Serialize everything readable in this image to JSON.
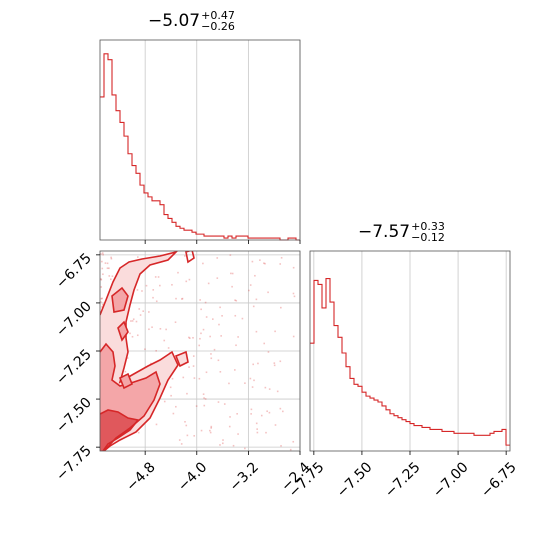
{
  "chart_data": [
    {
      "type": "histogram",
      "panel": "marginal-param-1",
      "title": {
        "median": "−5.07",
        "plus": "+0.47",
        "minus": "−0.26"
      },
      "xlim": [
        -5.5,
        -2.4
      ],
      "ticks": [
        -4.8,
        -4.0,
        -3.2,
        -2.4
      ],
      "tick_labels": [
        "−4.8",
        "−4.0",
        "−3.2",
        "−2.4"
      ],
      "grid": true,
      "color": "#d62728",
      "bin_start": -5.5,
      "bin_width": 0.062,
      "counts": [
        0.73,
        0.95,
        0.92,
        0.74,
        0.66,
        0.6,
        0.53,
        0.44,
        0.38,
        0.34,
        0.28,
        0.24,
        0.22,
        0.2,
        0.2,
        0.18,
        0.13,
        0.11,
        0.09,
        0.07,
        0.06,
        0.05,
        0.05,
        0.04,
        0.03,
        0.03,
        0.02,
        0.02,
        0.02,
        0.02,
        0.02,
        0.01,
        0.02,
        0.01,
        0.02,
        0.02,
        0.02,
        0.01,
        0.01,
        0.01,
        0.01,
        0.01,
        0.01,
        0.01,
        0.01,
        0.0,
        0.0,
        0.01,
        0.01,
        0.0
      ]
    },
    {
      "type": "contour",
      "panel": "joint-param-1-param-2",
      "xlim": [
        -5.5,
        -2.4
      ],
      "ylim": [
        -7.77,
        -6.73
      ],
      "xticks": [
        -4.8,
        -4.0,
        -3.2,
        -2.4
      ],
      "xtick_labels": [
        "−4.8",
        "−4.0",
        "−3.2",
        "−2.4"
      ],
      "yticks": [
        -6.75,
        -7.0,
        -7.25,
        -7.5,
        -7.75
      ],
      "ytick_labels": [
        "−6.75",
        "−7.00",
        "−7.25",
        "−7.50",
        "−7.75"
      ],
      "grid": true,
      "color": "#d62728"
    },
    {
      "type": "histogram",
      "panel": "marginal-param-2",
      "title": {
        "median": "−7.57",
        "plus": "+0.33",
        "minus": "−0.12"
      },
      "xlim": [
        -7.77,
        -6.73
      ],
      "ticks": [
        -7.75,
        -7.5,
        -7.25,
        -7.0,
        -6.75
      ],
      "tick_labels": [
        "−7.75",
        "−7.50",
        "−7.25",
        "−7.00",
        "−6.75"
      ],
      "grid": true,
      "color": "#d62728",
      "bin_start": -7.77,
      "bin_width": 0.0208,
      "counts": [
        0.55,
        0.87,
        0.85,
        0.73,
        0.88,
        0.76,
        0.64,
        0.58,
        0.5,
        0.43,
        0.37,
        0.34,
        0.33,
        0.3,
        0.28,
        0.27,
        0.26,
        0.25,
        0.23,
        0.21,
        0.19,
        0.18,
        0.17,
        0.16,
        0.15,
        0.14,
        0.13,
        0.13,
        0.12,
        0.12,
        0.11,
        0.11,
        0.11,
        0.1,
        0.1,
        0.1,
        0.09,
        0.09,
        0.09,
        0.09,
        0.09,
        0.08,
        0.08,
        0.08,
        0.08,
        0.09,
        0.1,
        0.1,
        0.11,
        0.03
      ]
    }
  ]
}
